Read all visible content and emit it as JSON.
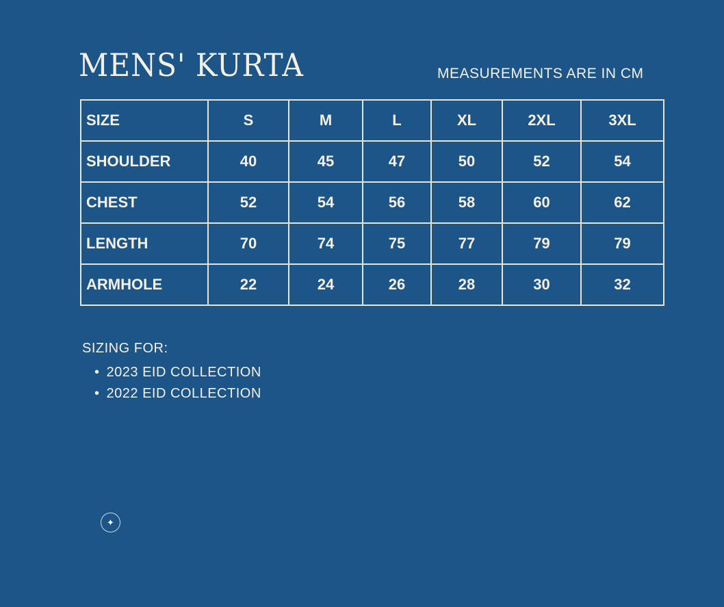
{
  "title": "MENS' KURTA",
  "units_note": "MEASUREMENTS ARE IN CM",
  "table": {
    "header": [
      "SIZE",
      "S",
      "M",
      "L",
      "XL",
      "2XL",
      "3XL"
    ],
    "rows": [
      [
        "SHOULDER",
        "40",
        "45",
        "47",
        "50",
        "52",
        "54"
      ],
      [
        "CHEST",
        "52",
        "54",
        "56",
        "58",
        "60",
        "62"
      ],
      [
        "LENGTH",
        "70",
        "74",
        "75",
        "77",
        "79",
        "79"
      ],
      [
        "ARMHOLE",
        "22",
        "24",
        "26",
        "28",
        "30",
        "32"
      ]
    ]
  },
  "sizing": {
    "label": "SIZING FOR:",
    "items": [
      "2023 EID COLLECTION",
      "2022 EID COLLECTION"
    ]
  },
  "icon": "sparkle-icon",
  "colors": {
    "background": "#1c5587",
    "text": "#f6f0e2"
  }
}
